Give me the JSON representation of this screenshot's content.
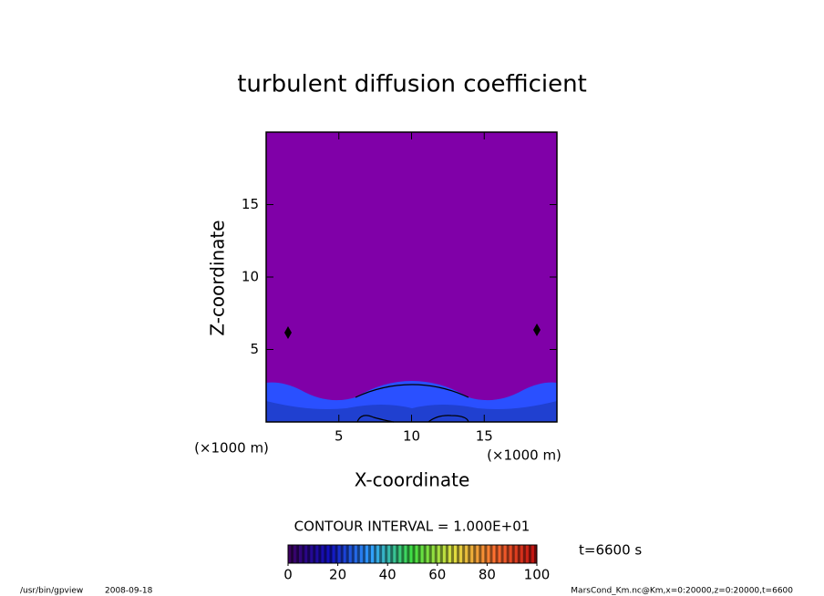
{
  "chart_data": {
    "type": "contour",
    "title": "turbulent diffusion coefficient",
    "xlabel": "X-coordinate",
    "ylabel": "Z-coordinate",
    "x_unit": "(×1000 m)",
    "y_unit": "(×1000 m)",
    "xlim": [
      0,
      20
    ],
    "xticks": [
      5,
      10,
      15
    ],
    "ylim": [
      0,
      20
    ],
    "yticks": [
      5,
      10,
      15
    ],
    "field_color": "#8000a8",
    "contour_interval": "CONTOUR INTERVAL = 1.000E+01",
    "time_label": "t=6600 s",
    "colorbar": {
      "lim": [
        0,
        100
      ],
      "ticks": [
        0,
        20,
        40,
        60,
        80,
        100
      ],
      "colors": [
        "#3c0060",
        "#1010c0",
        "#30a0ff",
        "#40e040",
        "#e0e040",
        "#ff7030",
        "#c01010"
      ]
    },
    "footer_left": "/usr/bin/gpview",
    "footer_date": "2008-09-18",
    "footer_right": "MarsCond_Km.nc@Km,x=0:20000,z=0:20000,t=6600"
  }
}
